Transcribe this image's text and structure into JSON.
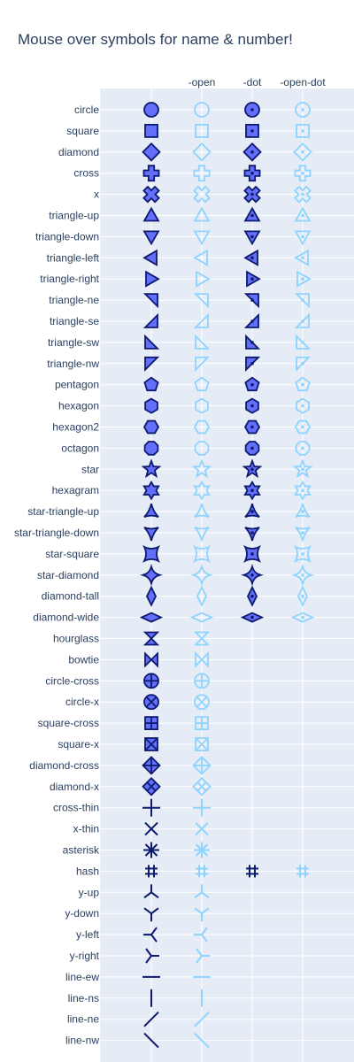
{
  "chart_data": {
    "type": "scatter",
    "title": "Mouse over symbols for name & number!",
    "xlabel": "",
    "ylabel": "",
    "x_categories": [
      "",
      "-open",
      "-dot",
      "-open-dot"
    ],
    "y_categories": [
      "circle",
      "square",
      "diamond",
      "cross",
      "x",
      "triangle-up",
      "triangle-down",
      "triangle-left",
      "triangle-right",
      "triangle-ne",
      "triangle-se",
      "triangle-sw",
      "triangle-nw",
      "pentagon",
      "hexagon",
      "hexagon2",
      "octagon",
      "star",
      "hexagram",
      "star-triangle-up",
      "star-triangle-down",
      "star-square",
      "star-diamond",
      "diamond-tall",
      "diamond-wide",
      "hourglass",
      "bowtie",
      "circle-cross",
      "circle-x",
      "square-cross",
      "square-x",
      "diamond-cross",
      "diamond-x",
      "cross-thin",
      "x-thin",
      "asterisk",
      "hash",
      "y-up",
      "y-down",
      "y-left",
      "y-right",
      "line-ew",
      "line-ns",
      "line-ne",
      "line-nw"
    ],
    "dot_variants_count": 25,
    "hash_has_dot_variants": true,
    "grid": true,
    "legend": "none",
    "colors": {
      "plot_bg": "#e5ecf6",
      "grid": "#ffffff",
      "marker_line": "#0d1b6e",
      "marker_fill": "#636efa",
      "open_line": "#8fd3ff",
      "text": "#2a3f5f"
    }
  }
}
